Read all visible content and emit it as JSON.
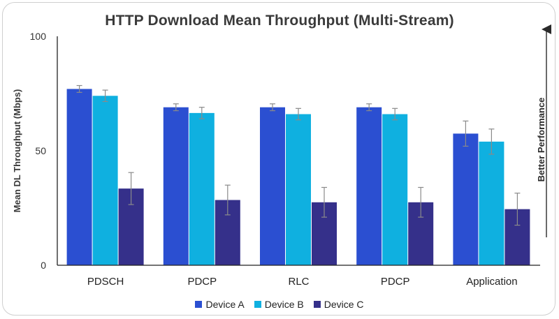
{
  "chart_data": {
    "type": "bar",
    "title": "HTTP Download Mean Throughput (Multi-Stream)",
    "xlabel": "",
    "ylabel": "Mean DL Throughput (Mbps)",
    "ylim": [
      0,
      100
    ],
    "yticks": [
      "0",
      "50",
      "100"
    ],
    "ytick_values": [
      0,
      50,
      100
    ],
    "categories": [
      "PDSCH",
      "PDCP",
      "RLC",
      "PDCP",
      "Application"
    ],
    "series": [
      {
        "name": "Device A",
        "color": "#2b4fd1",
        "values": [
          77,
          69,
          69,
          69,
          57.5
        ],
        "errors": [
          1.5,
          1.5,
          1.5,
          1.5,
          5.5
        ]
      },
      {
        "name": "Device B",
        "color": "#0fb0e0",
        "values": [
          74,
          66.5,
          66,
          66,
          54
        ],
        "errors": [
          2.5,
          2.5,
          2.5,
          2.5,
          5.5
        ]
      },
      {
        "name": "Device C",
        "color": "#35308a",
        "values": [
          33.5,
          28.5,
          27.5,
          27.5,
          24.5
        ],
        "errors": [
          7,
          6.5,
          6.5,
          6.5,
          7
        ]
      }
    ],
    "annotation": "Better Performance",
    "legend_position": "bottom"
  }
}
